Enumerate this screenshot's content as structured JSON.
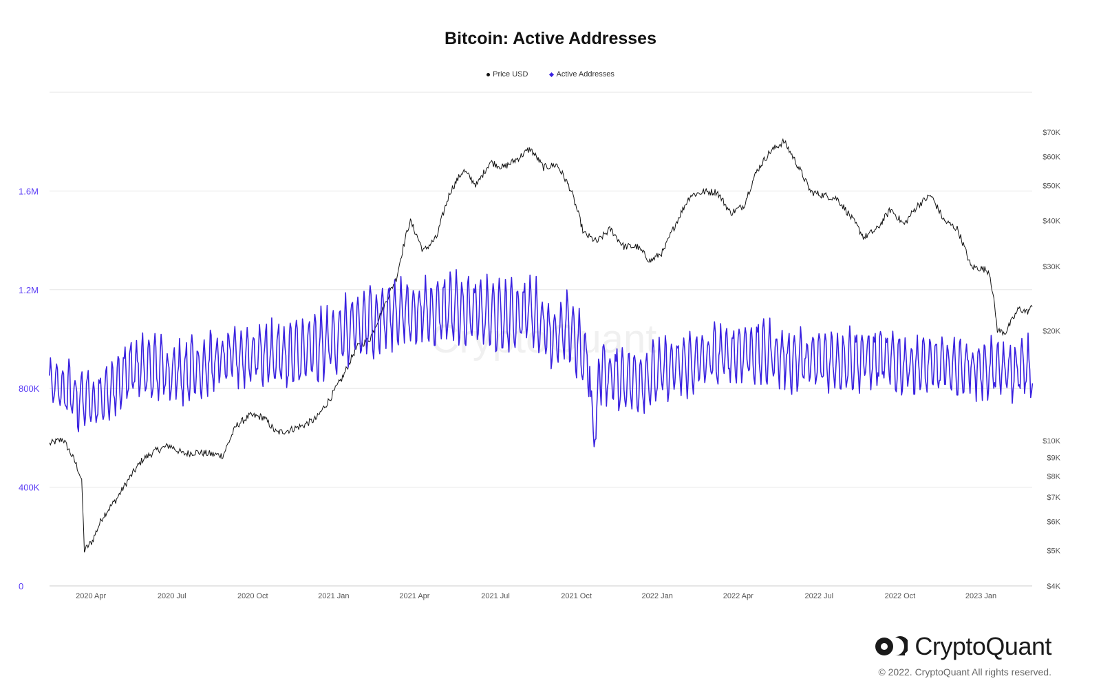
{
  "chart_data": {
    "type": "line",
    "title": "Bitcoin: Active Addresses",
    "legend": [
      {
        "name": "Price USD",
        "color": "#111111"
      },
      {
        "name": "Active Addresses",
        "color": "#3a22e0"
      }
    ],
    "x_tick_labels": [
      "2020 Apr",
      "2020 Jul",
      "2020 Oct",
      "2021 Jan",
      "2021 Apr",
      "2021 Jul",
      "2021 Oct",
      "2022 Jan",
      "2022 Apr",
      "2022 Jul",
      "2022 Oct",
      "2023 Jan"
    ],
    "y_left": {
      "label": "Active Addresses",
      "range": [
        0,
        2000000
      ],
      "ticks": [
        0,
        400000,
        800000,
        1200000,
        1600000
      ],
      "tick_labels": [
        "0",
        "400K",
        "800K",
        "1.2M",
        "1.6M"
      ],
      "color": "#5b3df5"
    },
    "y_right": {
      "label": "Price USD",
      "scale": "log",
      "range": [
        4000,
        90000
      ],
      "ticks": [
        4000,
        5000,
        6000,
        7000,
        8000,
        9000,
        10000,
        20000,
        30000,
        40000,
        50000,
        60000,
        70000
      ],
      "tick_labels": [
        "$4K",
        "$5K",
        "$6K",
        "$7K",
        "$8K",
        "$9K",
        "$10K",
        "$20K",
        "$30K",
        "$40K",
        "$50K",
        "$60K",
        "$70K"
      ]
    },
    "x_domain_months": [
      0,
      36.8
    ],
    "x_units": "months since 2020-02-15",
    "series": [
      {
        "name": "Price USD",
        "axis": "right",
        "color": "#111111",
        "points": [
          [
            0,
            9800
          ],
          [
            0.5,
            10100
          ],
          [
            1,
            8600
          ],
          [
            1.2,
            7800
          ],
          [
            1.3,
            5000
          ],
          [
            1.6,
            5300
          ],
          [
            2,
            6200
          ],
          [
            2.5,
            6900
          ],
          [
            3,
            7900
          ],
          [
            3.5,
            8900
          ],
          [
            4,
            9400
          ],
          [
            4.5,
            9700
          ],
          [
            5,
            9200
          ],
          [
            5.5,
            9300
          ],
          [
            6,
            9200
          ],
          [
            6.5,
            9100
          ],
          [
            7,
            11000
          ],
          [
            7.5,
            11700
          ],
          [
            8,
            11600
          ],
          [
            8.5,
            10500
          ],
          [
            9,
            10700
          ],
          [
            9.5,
            11000
          ],
          [
            10,
            11500
          ],
          [
            10.5,
            13000
          ],
          [
            11,
            15000
          ],
          [
            11.5,
            18000
          ],
          [
            12,
            19000
          ],
          [
            12.5,
            23000
          ],
          [
            13,
            28000
          ],
          [
            13.5,
            40000
          ],
          [
            14,
            33000
          ],
          [
            14.5,
            36000
          ],
          [
            15,
            48000
          ],
          [
            15.5,
            55000
          ],
          [
            16,
            50000
          ],
          [
            16.5,
            58000
          ],
          [
            17,
            56000
          ],
          [
            17.5,
            59000
          ],
          [
            18,
            63000
          ],
          [
            18.5,
            56000
          ],
          [
            19,
            57000
          ],
          [
            19.5,
            49000
          ],
          [
            20,
            37000
          ],
          [
            20.5,
            35000
          ],
          [
            21,
            38000
          ],
          [
            21.5,
            34000
          ],
          [
            22,
            34000
          ],
          [
            22.5,
            31000
          ],
          [
            23,
            33000
          ],
          [
            23.5,
            40000
          ],
          [
            24,
            47000
          ],
          [
            24.5,
            48000
          ],
          [
            25,
            48000
          ],
          [
            25.5,
            42000
          ],
          [
            26,
            44000
          ],
          [
            26.5,
            55000
          ],
          [
            27,
            62000
          ],
          [
            27.5,
            66000
          ],
          [
            28,
            57000
          ],
          [
            28.5,
            48000
          ],
          [
            29,
            47000
          ],
          [
            29.5,
            46000
          ],
          [
            30,
            41000
          ],
          [
            30.5,
            36000
          ],
          [
            31,
            38000
          ],
          [
            31.5,
            43000
          ],
          [
            32,
            39000
          ],
          [
            32.5,
            44000
          ],
          [
            33,
            47000
          ],
          [
            33.5,
            40000
          ],
          [
            34,
            38000
          ],
          [
            34.5,
            30000
          ],
          [
            35,
            29500
          ],
          [
            35.2,
            29000
          ],
          [
            35.5,
            20000
          ],
          [
            35.8,
            19800
          ],
          [
            36,
            21000
          ],
          [
            36.3,
            23000
          ],
          [
            36.6,
            22500
          ],
          [
            36.8,
            23200
          ]
        ]
      },
      {
        "name": "Active Addresses",
        "axis": "left",
        "color": "#3a22e0",
        "points": [
          [
            0,
            830000
          ],
          [
            1,
            760000
          ],
          [
            2,
            760000
          ],
          [
            3,
            880000
          ],
          [
            4,
            880000
          ],
          [
            5,
            870000
          ],
          [
            6,
            900000
          ],
          [
            7,
            930000
          ],
          [
            8,
            940000
          ],
          [
            9,
            930000
          ],
          [
            10,
            960000
          ],
          [
            11,
            1020000
          ],
          [
            12,
            1070000
          ],
          [
            13,
            1110000
          ],
          [
            14,
            1110000
          ],
          [
            15,
            1130000
          ],
          [
            16,
            1110000
          ],
          [
            17,
            1080000
          ],
          [
            18,
            1120000
          ],
          [
            19,
            1000000
          ],
          [
            19.5,
            1050000
          ],
          [
            20,
            920000
          ],
          [
            21,
            850000
          ],
          [
            22,
            830000
          ],
          [
            23,
            870000
          ],
          [
            24,
            900000
          ],
          [
            25,
            930000
          ],
          [
            26,
            950000
          ],
          [
            27,
            940000
          ],
          [
            28,
            910000
          ],
          [
            29,
            910000
          ],
          [
            30,
            920000
          ],
          [
            31,
            920000
          ],
          [
            32,
            900000
          ],
          [
            33,
            890000
          ],
          [
            34,
            890000
          ],
          [
            35,
            880000
          ],
          [
            36,
            870000
          ],
          [
            36.8,
            880000
          ]
        ],
        "fluctuation": "daily values oscillate roughly ±150K around this weekly trend"
      }
    ],
    "watermark": "CryptoQuant"
  },
  "brand": {
    "name": "CryptoQuant",
    "copyright": "© 2022. CryptoQuant All rights reserved."
  }
}
